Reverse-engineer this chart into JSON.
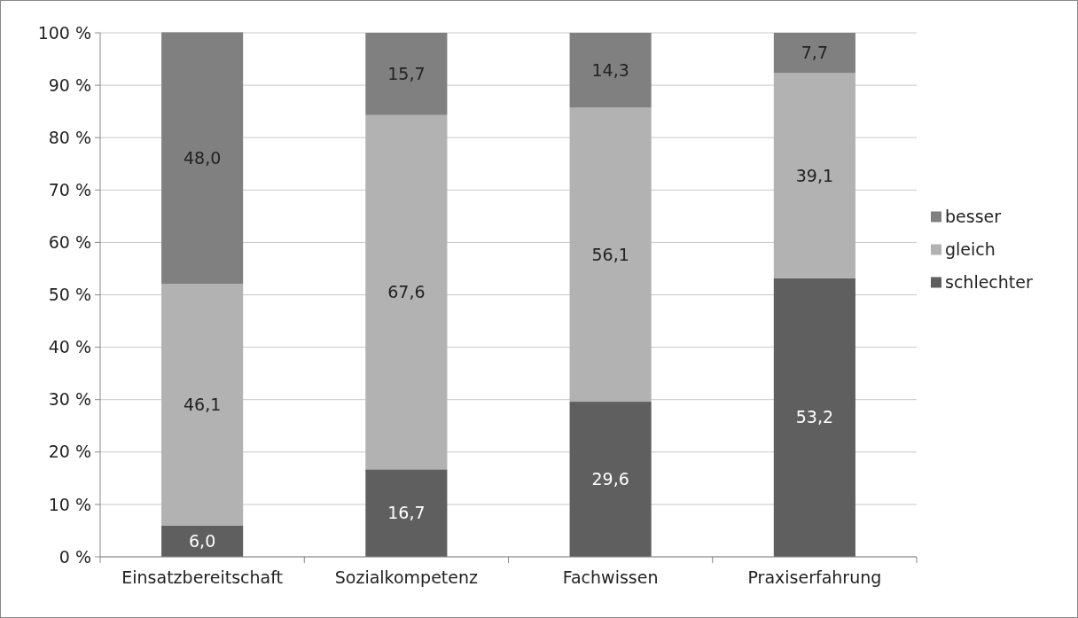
{
  "chart_data": {
    "type": "bar",
    "stacked": true,
    "categories": [
      "Einsatzbereitschaft",
      "Sozialkompetenz",
      "Fachwissen",
      "Praxiserfahrung"
    ],
    "series": [
      {
        "name": "schlechter",
        "color": "#5f5f5f",
        "values": [
          6.0,
          16.7,
          29.6,
          53.2
        ],
        "value_labels": [
          "6,0",
          "16,7",
          "29,6",
          "53,2"
        ]
      },
      {
        "name": "gleich",
        "color": "#b2b2b2",
        "values": [
          46.1,
          67.6,
          56.1,
          39.1
        ],
        "value_labels": [
          "46,1",
          "67,6",
          "56,1",
          "39,1"
        ]
      },
      {
        "name": "besser",
        "color": "#808080",
        "values": [
          48.0,
          15.7,
          14.3,
          7.7
        ],
        "value_labels": [
          "48,0",
          "15,7",
          "14,3",
          "7,7"
        ]
      }
    ],
    "ylim": [
      0,
      100
    ],
    "yticks": [
      {
        "value": 0,
        "label": "0 %"
      },
      {
        "value": 10,
        "label": "10 %"
      },
      {
        "value": 20,
        "label": "20 %"
      },
      {
        "value": 30,
        "label": "30 %"
      },
      {
        "value": 40,
        "label": "40 %"
      },
      {
        "value": 50,
        "label": "50 %"
      },
      {
        "value": 60,
        "label": "60 %"
      },
      {
        "value": 70,
        "label": "70 %"
      },
      {
        "value": 80,
        "label": "80 %"
      },
      {
        "value": 90,
        "label": "90 %"
      },
      {
        "value": 100,
        "label": "100 %"
      }
    ],
    "grid": "y",
    "legend": "right"
  }
}
